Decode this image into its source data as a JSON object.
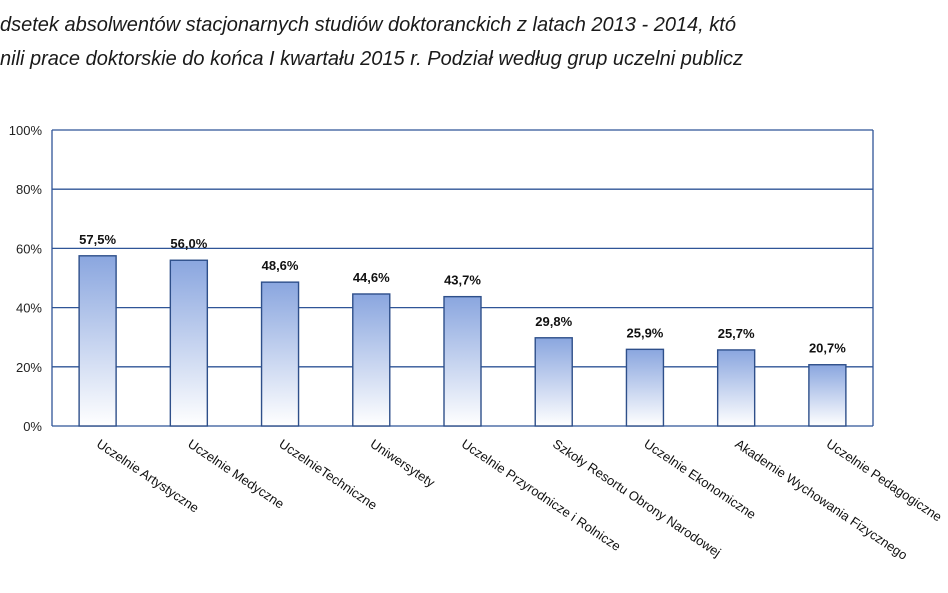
{
  "chart_data": {
    "type": "bar",
    "title_line1": "dsetek absolwentów stacjonarnych studiów doktoranckich z latach 2013 - 2014, któ",
    "title_line2": "nili prace doktorskie do końca I kwartału 2015 r. Podział według grup uczelni publicz",
    "xlabel": "",
    "ylabel": "",
    "ylim": [
      0,
      100
    ],
    "yticks": [
      "0%",
      "20%",
      "40%",
      "60%",
      "80%",
      "100%"
    ],
    "ytick_values": [
      0,
      20,
      40,
      60,
      80,
      100
    ],
    "grid": true,
    "legend": "none",
    "bar_color_top": "#8aa6df",
    "bar_color_bottom": "#ffffff",
    "bar_border": "#2e4f8a",
    "grid_color": "#2f5597",
    "categories": [
      "Uczelnie  Artystyczne",
      "Uczelnie Medyczne",
      "UczelnieTechniczne",
      "Uniwersytety",
      "Uczelnie Przyrodnicze i  Rolnicze",
      "Szkoły Resortu Obrony Narodowej",
      "Uczelnie  Ekonomiczne",
      "Akademie Wychowania Fizycznego",
      "Uczelnie Pedagogiczne"
    ],
    "values": [
      57.5,
      56.0,
      48.6,
      44.6,
      43.7,
      29.8,
      25.9,
      25.7,
      20.7
    ],
    "value_labels": [
      "57,5%",
      "56,0%",
      "48,6%",
      "44,6%",
      "43,7%",
      "29,8%",
      "25,9%",
      "25,7%",
      "20,7%"
    ]
  }
}
